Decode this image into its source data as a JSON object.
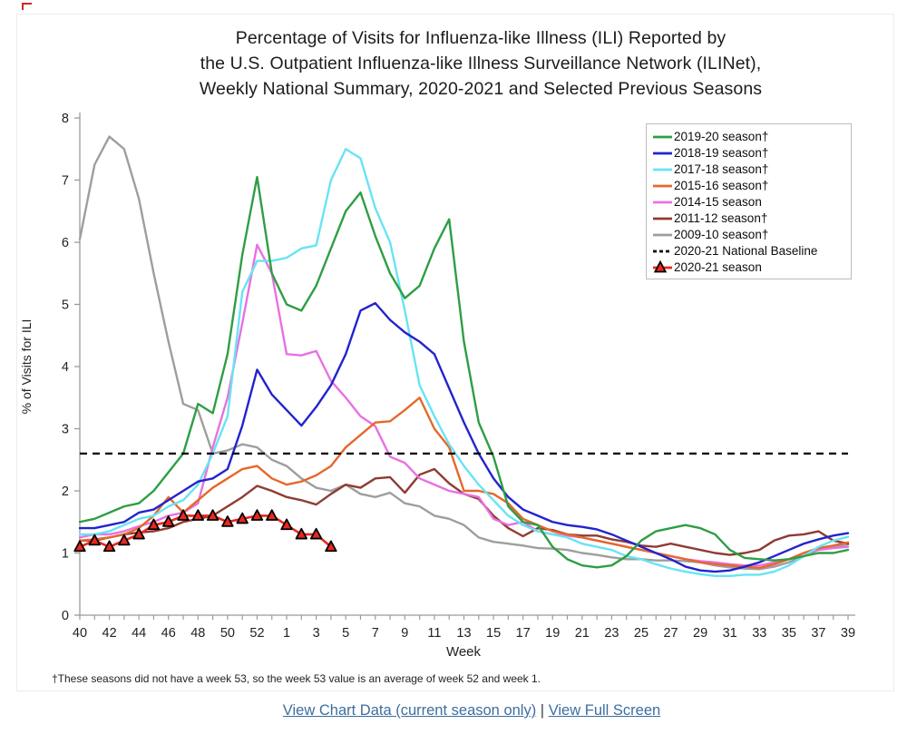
{
  "page": {
    "title_lines": [
      "Percentage of Visits for Influenza-like Illness (ILI) Reported by",
      "the U.S. Outpatient Influenza-like Illness Surveillance Network (ILINet),",
      "Weekly National Summary, 2020-2021 and Selected Previous Seasons"
    ],
    "footnote": "†These seasons did not have a week 53, so the week 53 value is an average of week 52 and week 1.",
    "links": {
      "view_chart_data": "View Chart Data (current season only)",
      "separator": "|",
      "view_full_screen": "View Full Screen"
    }
  },
  "chart_data": {
    "type": "line",
    "title": "Percentage of Visits for Influenza-like Illness (ILI) Reported by the U.S. Outpatient Influenza-like Illness Surveillance Network (ILINet), Weekly National Summary, 2020-2021 and Selected Previous Seasons",
    "xlabel": "Week",
    "ylabel": "% of Visits for ILI",
    "ylim": [
      0,
      8
    ],
    "y_ticks": [
      0,
      1,
      2,
      3,
      4,
      5,
      6,
      7,
      8
    ],
    "grid": false,
    "legend_position": "top-right",
    "x_labeled_every": 2,
    "categories": [
      40,
      41,
      42,
      43,
      44,
      45,
      46,
      47,
      48,
      49,
      50,
      51,
      52,
      53,
      1,
      2,
      3,
      4,
      5,
      6,
      7,
      8,
      9,
      10,
      11,
      12,
      13,
      14,
      15,
      16,
      17,
      18,
      19,
      20,
      21,
      22,
      23,
      24,
      25,
      26,
      27,
      28,
      29,
      30,
      31,
      32,
      33,
      34,
      35,
      36,
      37,
      38,
      39
    ],
    "series": [
      {
        "name": "2019-20 season†",
        "color": "#2E9E44",
        "style": "line",
        "values": [
          1.5,
          1.55,
          1.65,
          1.75,
          1.8,
          2.0,
          2.3,
          2.6,
          3.4,
          3.25,
          4.2,
          5.8,
          7.05,
          5.5,
          5.0,
          4.9,
          5.3,
          5.9,
          6.5,
          6.8,
          6.1,
          5.5,
          5.1,
          5.3,
          5.9,
          6.37,
          4.4,
          3.1,
          2.55,
          1.75,
          1.5,
          1.45,
          1.1,
          0.9,
          0.8,
          0.77,
          0.8,
          0.95,
          1.2,
          1.35,
          1.4,
          1.45,
          1.4,
          1.3,
          1.05,
          0.92,
          0.9,
          0.88,
          0.9,
          0.95,
          1.0,
          1.0,
          1.05
        ]
      },
      {
        "name": "2018-19 season†",
        "color": "#2323CE",
        "style": "line",
        "values": [
          1.4,
          1.4,
          1.45,
          1.5,
          1.65,
          1.7,
          1.85,
          2.0,
          2.15,
          2.2,
          2.35,
          3.05,
          3.95,
          3.55,
          3.3,
          3.05,
          3.35,
          3.7,
          4.2,
          4.9,
          5.02,
          4.75,
          4.55,
          4.4,
          4.2,
          3.65,
          3.1,
          2.6,
          2.2,
          1.9,
          1.7,
          1.6,
          1.5,
          1.45,
          1.42,
          1.38,
          1.3,
          1.2,
          1.1,
          1.0,
          0.9,
          0.78,
          0.72,
          0.7,
          0.72,
          0.78,
          0.85,
          0.95,
          1.05,
          1.15,
          1.22,
          1.28,
          1.32
        ]
      },
      {
        "name": "2017-18 season†",
        "color": "#67E4F4",
        "style": "line",
        "values": [
          1.3,
          1.3,
          1.35,
          1.45,
          1.55,
          1.6,
          1.75,
          1.85,
          2.1,
          2.6,
          3.2,
          5.2,
          5.7,
          5.7,
          5.75,
          5.9,
          5.95,
          7.0,
          7.5,
          7.35,
          6.55,
          6.0,
          4.9,
          3.7,
          3.2,
          2.75,
          2.4,
          2.1,
          1.85,
          1.6,
          1.45,
          1.35,
          1.3,
          1.25,
          1.15,
          1.1,
          1.05,
          0.95,
          0.9,
          0.82,
          0.75,
          0.7,
          0.66,
          0.63,
          0.63,
          0.65,
          0.65,
          0.7,
          0.8,
          0.95,
          1.1,
          1.2,
          1.26
        ]
      },
      {
        "name": "2015-16 season†",
        "color": "#E5682C",
        "style": "line",
        "values": [
          1.2,
          1.22,
          1.25,
          1.3,
          1.4,
          1.6,
          1.9,
          1.65,
          1.85,
          2.05,
          2.2,
          2.35,
          2.4,
          2.2,
          2.1,
          2.15,
          2.25,
          2.4,
          2.7,
          2.9,
          3.1,
          3.12,
          3.3,
          3.5,
          3.0,
          2.7,
          2.0,
          2.0,
          1.95,
          1.8,
          1.55,
          1.45,
          1.35,
          1.3,
          1.25,
          1.2,
          1.15,
          1.1,
          1.05,
          1.0,
          0.95,
          0.9,
          0.85,
          0.82,
          0.8,
          0.78,
          0.76,
          0.82,
          0.9,
          1.0,
          1.08,
          1.12,
          1.17
        ]
      },
      {
        "name": "2014-15 season",
        "color": "#E970E2",
        "style": "line",
        "values": [
          1.25,
          1.3,
          1.3,
          1.35,
          1.43,
          1.5,
          1.6,
          1.65,
          1.8,
          2.7,
          3.5,
          4.7,
          5.96,
          5.5,
          4.2,
          4.18,
          4.25,
          3.77,
          3.5,
          3.2,
          3.04,
          2.55,
          2.45,
          2.2,
          2.1,
          2.0,
          1.95,
          1.9,
          1.55,
          1.45,
          1.5,
          1.35,
          1.3,
          1.28,
          1.25,
          1.2,
          1.15,
          1.1,
          1.05,
          1.0,
          0.95,
          0.9,
          0.87,
          0.85,
          0.82,
          0.8,
          0.8,
          0.85,
          0.9,
          1.0,
          1.05,
          1.08,
          1.1
        ]
      },
      {
        "name": "2011-12 season†",
        "color": "#8E3C32",
        "style": "line",
        "values": [
          1.2,
          1.2,
          1.25,
          1.3,
          1.33,
          1.35,
          1.4,
          1.5,
          1.55,
          1.6,
          1.75,
          1.9,
          2.08,
          2.0,
          1.9,
          1.85,
          1.78,
          1.95,
          2.1,
          2.05,
          2.2,
          2.22,
          1.97,
          2.26,
          2.35,
          2.12,
          1.95,
          1.87,
          1.6,
          1.4,
          1.27,
          1.4,
          1.37,
          1.3,
          1.28,
          1.28,
          1.22,
          1.18,
          1.12,
          1.1,
          1.15,
          1.1,
          1.05,
          1.0,
          0.97,
          1.0,
          1.05,
          1.2,
          1.28,
          1.3,
          1.35,
          1.2,
          1.15
        ]
      },
      {
        "name": "2009-10 season†",
        "color": "#9E9E9E",
        "style": "line",
        "values": [
          6.05,
          7.25,
          7.7,
          7.5,
          6.7,
          5.5,
          4.4,
          3.4,
          3.3,
          2.6,
          2.65,
          2.75,
          2.7,
          2.5,
          2.4,
          2.2,
          2.05,
          2.0,
          2.1,
          1.95,
          1.9,
          1.97,
          1.8,
          1.75,
          1.6,
          1.55,
          1.45,
          1.25,
          1.18,
          1.15,
          1.12,
          1.08,
          1.07,
          1.05,
          1.0,
          0.97,
          0.93,
          0.9,
          0.9,
          0.88,
          0.88,
          0.87,
          0.85,
          0.8,
          0.77,
          0.75,
          0.74,
          0.78,
          0.85,
          0.95,
          1.05,
          1.1,
          1.14
        ]
      },
      {
        "name": "2020-21 National Baseline",
        "color": "#000000",
        "style": "dashed",
        "baseline_value": 2.6
      },
      {
        "name": "2020-21 season",
        "color": "#E8281E",
        "style": "triangle-line",
        "marker_stroke": "#000000",
        "values": [
          1.1,
          1.2,
          1.1,
          1.2,
          1.3,
          1.45,
          1.5,
          1.6,
          1.6,
          1.6,
          1.5,
          1.55,
          1.6,
          1.6,
          1.45,
          1.3,
          1.3,
          1.1
        ]
      }
    ]
  }
}
